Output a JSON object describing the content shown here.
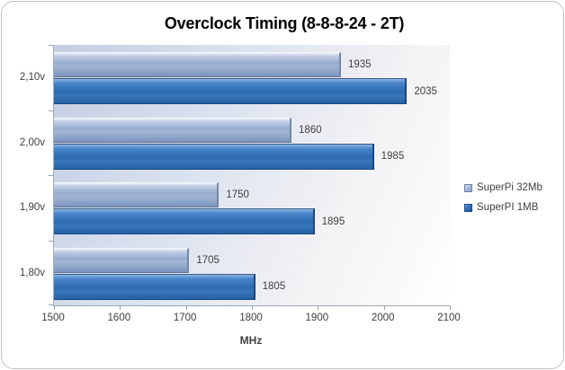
{
  "chart_data": {
    "type": "bar",
    "orientation": "horizontal",
    "title": "Overclock Timing (8-8-8-24 - 2T)",
    "xlabel": "MHz",
    "ylabel": "",
    "categories": [
      "2,10v",
      "2,00v",
      "1,90v",
      "1,80v"
    ],
    "series": [
      {
        "name": "SuperPi 32Mb",
        "color": "#94aacd",
        "values": [
          1935,
          1860,
          1750,
          1705
        ]
      },
      {
        "name": "SuperPI 1MB",
        "color": "#2e6cb2",
        "values": [
          2035,
          1985,
          1895,
          1805
        ]
      }
    ],
    "xlim": [
      1500,
      2100
    ],
    "x_ticks": [
      "1500",
      "1600",
      "1700",
      "1800",
      "1900",
      "2000",
      "2100"
    ],
    "grid": false,
    "legend_position": "right",
    "colors": {
      "axis": "#9aa5b5",
      "label_text": "#404040",
      "title_text": "#000000",
      "plot_bg_start": "#c3cde0",
      "plot_bg_end": "#ffffff"
    }
  }
}
